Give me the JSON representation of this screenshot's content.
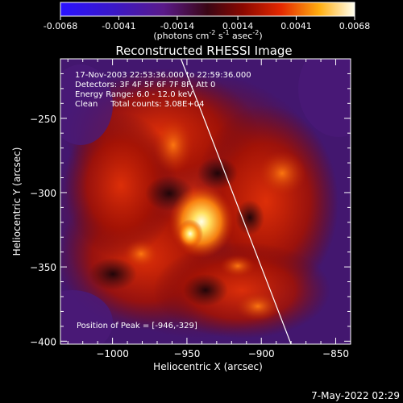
{
  "colorbar": {
    "ticks": [
      "-0.0068",
      "-0.0041",
      "-0.0014",
      "0.0014",
      "0.0041",
      "0.0068"
    ],
    "units_main": "(photons cm",
    "units_exp1": "-2",
    "units_mid": " s",
    "units_exp2": "-1",
    "units_tail": " asec",
    "units_exp3": "-2",
    "units_close": ")"
  },
  "chart_data": {
    "type": "heatmap",
    "title": "Reconstructed RHESSI Image",
    "xlabel": "Heliocentric X (arcsec)",
    "ylabel": "Heliocentric Y (arcsec)",
    "xlim": [
      -1035,
      -840
    ],
    "ylim": [
      -402,
      -210
    ],
    "x_ticks": [
      {
        "value": -1000,
        "label": "−1000"
      },
      {
        "value": -950,
        "label": "−950"
      },
      {
        "value": -900,
        "label": "−900"
      },
      {
        "value": -850,
        "label": "−850"
      }
    ],
    "y_ticks": [
      {
        "value": -250,
        "label": "−250"
      },
      {
        "value": -300,
        "label": "−300"
      },
      {
        "value": -350,
        "label": "−350"
      },
      {
        "value": -400,
        "label": "−400"
      }
    ],
    "colorbar_range": [
      -0.0068,
      0.0068
    ],
    "colormap": "hot-purple",
    "annotations": [
      "17-Nov-2003 22:53:36.000 to 22:59:36.000",
      "Detectors: 3F 4F 5F 6F 7F 8F, Att 0",
      "Energy Range: 6.0 - 12.0 keV",
      "Clean     Total counts: 3.08E+04"
    ],
    "peak_label": "Position of Peak = [-946,-329]",
    "peak": {
      "x": -946,
      "y": -329
    },
    "limb_line": [
      {
        "x": -954,
        "y": -210
      },
      {
        "x": -880,
        "y": -402
      }
    ]
  },
  "footer": {
    "date": "7-May-2022 02:29"
  }
}
